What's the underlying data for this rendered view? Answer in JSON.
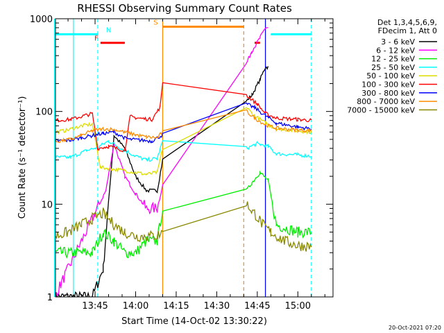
{
  "chart_data": {
    "type": "line",
    "title": "RHESSI Observing Summary Count Rates",
    "xlabel": "Start Time (14-Oct-02 13:30:22)",
    "ylabel": "Count Rate (s⁻¹ detector⁻¹)",
    "y_scale": "log",
    "ylim": [
      1,
      1000
    ],
    "xlim": [
      "13:30:22",
      "15:13:00"
    ],
    "x_ticks": [
      "13:45",
      "14:00",
      "14:15",
      "14:30",
      "14:45",
      "15:00"
    ],
    "y_ticks": [
      "1",
      "10",
      "100",
      "1000"
    ],
    "legend": {
      "position": "top-right",
      "header": [
        "Det 1,3,4,5,6,9,",
        "FDecim 1, Att 0"
      ]
    },
    "series": [
      {
        "name": "3 - 6 keV",
        "color": "#000000",
        "x": [
          "13:30",
          "13:44",
          "13:48",
          "13:52",
          "13:56",
          "14:00",
          "14:04",
          "14:08",
          "14:10",
          "14:41",
          "14:43",
          "14:46",
          "14:48",
          "14:49"
        ],
        "y": [
          1,
          1,
          2,
          55,
          40,
          20,
          14,
          14,
          30,
          130,
          150,
          220,
          300,
          300
        ]
      },
      {
        "name": "6 - 12 keV",
        "color": "#ff00ff",
        "x": [
          "13:30",
          "13:45",
          "13:49",
          "13:52",
          "13:56",
          "14:00",
          "14:04",
          "14:08",
          "14:10",
          "14:41",
          "14:43",
          "14:46",
          "14:48",
          "14:49"
        ],
        "y": [
          1,
          8,
          14,
          45,
          20,
          13,
          9,
          9,
          16,
          330,
          450,
          620,
          800,
          800
        ]
      },
      {
        "name": "12 - 25 keV",
        "color": "#00ee00",
        "x": [
          "13:30",
          "13:36",
          "13:44",
          "13:48",
          "13:52",
          "13:56",
          "14:00",
          "14:04",
          "14:08",
          "14:10",
          "14:41",
          "14:43",
          "14:46",
          "14:49",
          "14:52",
          "15:00",
          "15:05"
        ],
        "y": [
          3,
          3,
          3,
          5,
          4,
          3,
          3,
          4,
          4,
          9,
          14,
          17,
          22,
          18,
          6,
          5,
          5
        ]
      },
      {
        "name": "25 - 50 keV",
        "color": "#00ffff",
        "x": [
          "13:30",
          "13:36",
          "13:42",
          "13:46",
          "13:50",
          "13:56",
          "14:00",
          "14:04",
          "14:08",
          "14:10",
          "14:41",
          "14:45",
          "14:49",
          "14:52",
          "15:00",
          "15:05"
        ],
        "y": [
          32,
          32,
          38,
          41,
          48,
          38,
          33,
          30,
          31,
          48,
          40,
          45,
          42,
          35,
          34,
          33
        ]
      },
      {
        "name": "50 - 100 keV",
        "color": "#dddd00",
        "x": [
          "13:30",
          "13:34",
          "13:40",
          "13:44",
          "13:47",
          "13:51",
          "13:56",
          "14:00",
          "14:04",
          "14:08",
          "14:10",
          "14:41",
          "14:44",
          "14:48",
          "14:52",
          "15:00",
          "15:05"
        ],
        "y": [
          60,
          62,
          70,
          73,
          25,
          24,
          23,
          22,
          21,
          22,
          40,
          110,
          90,
          75,
          65,
          62,
          60
        ]
      },
      {
        "name": "100 - 300 keV",
        "color": "#ff0000",
        "x": [
          "13:30",
          "13:36",
          "13:41",
          "13:44",
          "13:46",
          "13:50",
          "13:56",
          "13:58",
          "14:02",
          "14:06",
          "14:09",
          "14:10",
          "14:41",
          "14:45",
          "14:48",
          "14:52",
          "15:00",
          "15:05"
        ],
        "y": [
          80,
          82,
          90,
          95,
          40,
          42,
          38,
          88,
          84,
          82,
          110,
          210,
          150,
          120,
          95,
          85,
          82,
          80
        ]
      },
      {
        "name": "300 - 800 keV",
        "color": "#0000ff",
        "x": [
          "13:30",
          "13:36",
          "13:40",
          "13:44",
          "13:48",
          "13:52",
          "13:56",
          "13:58",
          "14:02",
          "14:06",
          "14:10",
          "14:41",
          "14:44",
          "14:48",
          "14:52",
          "15:00",
          "15:05"
        ],
        "y": [
          48,
          49,
          52,
          55,
          58,
          60,
          52,
          50,
          49,
          48,
          56,
          120,
          110,
          90,
          75,
          68,
          65
        ]
      },
      {
        "name": "800 - 7000 keV",
        "color": "#ff8c00",
        "x": [
          "13:30",
          "13:36",
          "13:40",
          "13:44",
          "13:48",
          "13:52",
          "13:56",
          "14:00",
          "14:04",
          "14:08",
          "14:10",
          "14:41",
          "14:44",
          "14:48",
          "14:52",
          "15:00",
          "15:05"
        ],
        "y": [
          47,
          50,
          55,
          62,
          65,
          64,
          60,
          56,
          53,
          52,
          60,
          100,
          85,
          72,
          66,
          63,
          62
        ]
      },
      {
        "name": "7000 - 15000 keV",
        "color": "#888800",
        "x": [
          "13:30",
          "13:35",
          "13:40",
          "13:44",
          "13:48",
          "13:52",
          "13:56",
          "14:00",
          "14:04",
          "14:08",
          "14:10",
          "14:41",
          "14:44",
          "14:47",
          "14:50",
          "14:55",
          "15:00",
          "15:05"
        ],
        "y": [
          4.5,
          5,
          6,
          7,
          8,
          6,
          5,
          4.5,
          4.5,
          4.6,
          5,
          10,
          8,
          6,
          5,
          4,
          3.6,
          3.5
        ]
      }
    ],
    "flags": [
      {
        "label": "N",
        "color": "#00ffff",
        "segments": [
          [
            "13:30",
            "13:46"
          ],
          [
            "14:50",
            "15:05"
          ]
        ],
        "level": 680
      },
      {
        "label": "F",
        "color": "#ff0000",
        "segments": [
          [
            "13:47",
            "13:56"
          ],
          [
            "14:44",
            "14:46"
          ]
        ],
        "level": 550
      },
      {
        "label": "S",
        "color": "#ff8c00",
        "segments": [
          [
            "14:10",
            "14:40"
          ]
        ],
        "level": 820
      }
    ],
    "vlines": [
      {
        "x": "13:30",
        "color": "#00ffff",
        "dash": false
      },
      {
        "x": "13:37",
        "color": "#00ffff",
        "dash": false
      },
      {
        "x": "13:46",
        "color": "#00ffff",
        "dash": true
      },
      {
        "x": "14:10",
        "color": "#ff8c00",
        "dash": false
      },
      {
        "x": "14:40",
        "color": "#ff8c00",
        "dash": true
      },
      {
        "x": "14:48",
        "color": "#00ffff",
        "dash": false
      },
      {
        "x": "14:48",
        "color": "#0000ff",
        "dash": false
      },
      {
        "x": "15:05",
        "color": "#00ffff",
        "dash": true
      }
    ],
    "footer_date": "20-Oct-2021 07:20"
  }
}
